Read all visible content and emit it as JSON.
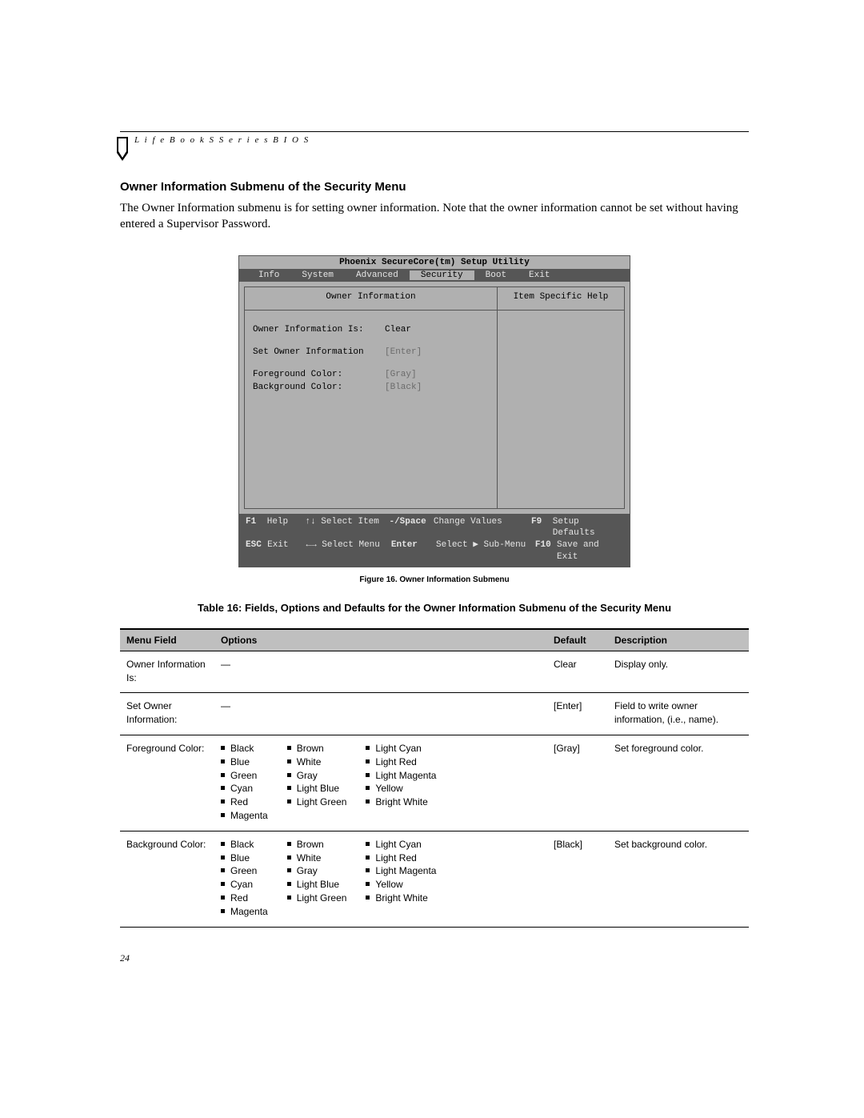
{
  "header": "L i f e B o o k   S   S e r i e s   B I O S",
  "section_title": "Owner Information Submenu of the Security Menu",
  "intro": "The Owner Information submenu is for setting owner information. Note that the owner information cannot be set without having entered a Supervisor Password.",
  "bios": {
    "title": "Phoenix SecureCore(tm) Setup Utility",
    "tabs": [
      "Info",
      "System",
      "Advanced",
      "Security",
      "Boot",
      "Exit"
    ],
    "active_tab": "Security",
    "left_title": "Owner Information",
    "right_title": "Item Specific Help",
    "fields": [
      {
        "label": "Owner Information Is:",
        "value": "Clear",
        "dim": false
      },
      {
        "label": "Set Owner Information",
        "value": "[Enter]",
        "dim": true
      },
      {
        "label": "Foreground Color:",
        "value": "[Gray]",
        "dim": true
      },
      {
        "label": "Background Color:",
        "value": "[Black]",
        "dim": true
      }
    ],
    "footer": {
      "r1": {
        "k1": "F1",
        "a1": "Help",
        "nav": "↑↓ Select Item",
        "mk": "-/Space",
        "ma": "Change Values",
        "rk": "F9",
        "ra": "Setup Defaults"
      },
      "r2": {
        "k1": "ESC",
        "a1": "Exit",
        "nav": "←→ Select Menu",
        "mk": "Enter",
        "ma": "Select ▶ Sub-Menu",
        "rk": "F10",
        "ra": "Save and Exit"
      }
    }
  },
  "figcap": "Figure 16.   Owner Information Submenu",
  "tablecap": "Table 16: Fields, Options and Defaults for the Owner Information Submenu of the Security Menu",
  "table": {
    "headers": [
      "Menu Field",
      "Options",
      "Default",
      "Description"
    ],
    "rows": [
      {
        "menu": "Owner Information Is:",
        "opts_dash": true,
        "default": "Clear",
        "desc": "Display only."
      },
      {
        "menu": "Set Owner Information:",
        "opts_dash": true,
        "default": "[Enter]",
        "desc": "Field to write owner information, (i.e., name)."
      },
      {
        "menu": "Foreground Color:",
        "opts_cols": [
          [
            "Black",
            "Blue",
            "Green",
            "Cyan",
            "Red",
            "Magenta"
          ],
          [
            "Brown",
            "White",
            "Gray",
            "Light Blue",
            "Light Green"
          ],
          [
            "Light Cyan",
            "Light Red",
            "Light Magenta",
            "Yellow",
            "Bright White"
          ]
        ],
        "default": "[Gray]",
        "desc": "Set foreground color."
      },
      {
        "menu": "Background Color:",
        "opts_cols": [
          [
            "Black",
            "Blue",
            "Green",
            "Cyan",
            "Red",
            "Magenta"
          ],
          [
            "Brown",
            "White",
            "Gray",
            "Light Blue",
            "Light Green"
          ],
          [
            "Light Cyan",
            "Light Red",
            "Light Magenta",
            "Yellow",
            "Bright White"
          ]
        ],
        "default": "[Black]",
        "desc": "Set background color."
      }
    ]
  },
  "pagenum": "24",
  "colors": {
    "bios_bg": "#b0b0b0",
    "bios_bar": "#565656",
    "table_header_bg": "#bfbfbf"
  }
}
